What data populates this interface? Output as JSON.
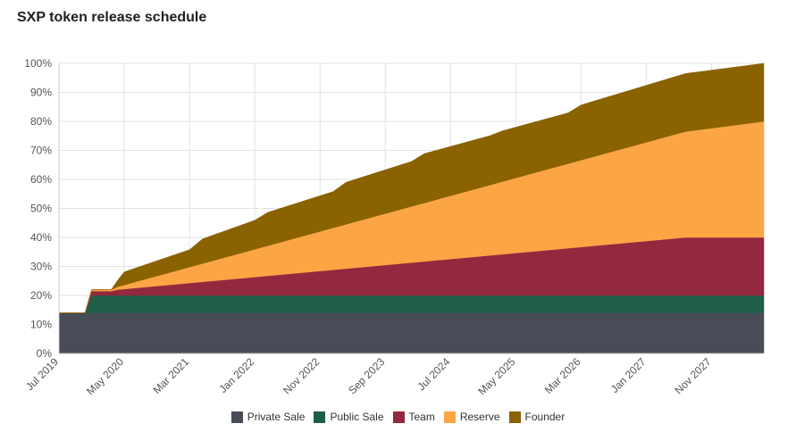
{
  "title": "SXP token release schedule",
  "chart_data": {
    "type": "area",
    "stacked": true,
    "title": "SXP token release schedule",
    "xlabel": "",
    "ylabel": "",
    "ylim": [
      0,
      100
    ],
    "x_range": [
      "Jul 2019",
      "Jul 2028"
    ],
    "yticks": [
      0,
      10,
      20,
      30,
      40,
      50,
      60,
      70,
      80,
      90,
      100
    ],
    "ytick_labels": [
      "0%",
      "10%",
      "20%",
      "30%",
      "40%",
      "50%",
      "60%",
      "70%",
      "80%",
      "90%",
      "100%"
    ],
    "xtick_labels": [
      "Jul 2019",
      "May 2020",
      "Mar 2021",
      "Jan 2022",
      "Nov 2022",
      "Sep 2023",
      "Jul 2024",
      "May 2025",
      "Mar 2026",
      "Jan 2027",
      "Nov 2027"
    ],
    "xtick_month_index": [
      0,
      10,
      20,
      30,
      40,
      50,
      60,
      70,
      80,
      90,
      100
    ],
    "total_months": 108,
    "grid": true,
    "legend_position": "bottom",
    "series": [
      {
        "name": "Private Sale",
        "color": "#474c56",
        "points": [
          [
            0,
            14
          ],
          [
            108,
            14
          ]
        ]
      },
      {
        "name": "Public Sale",
        "color": "#1f5f4a",
        "points": [
          [
            0,
            0
          ],
          [
            4,
            0
          ],
          [
            5,
            6
          ],
          [
            108,
            6
          ]
        ]
      },
      {
        "name": "Team",
        "color": "#93283f",
        "points": [
          [
            0,
            0
          ],
          [
            4,
            0
          ],
          [
            5,
            1.5
          ],
          [
            8,
            1.5
          ],
          [
            9,
            2
          ],
          [
            96,
            20
          ],
          [
            108,
            20
          ]
        ]
      },
      {
        "name": "Reserve",
        "color": "#fba544",
        "points": [
          [
            0,
            0
          ],
          [
            4,
            0
          ],
          [
            5,
            0.5
          ],
          [
            8,
            0.5
          ],
          [
            9,
            1
          ],
          [
            96,
            36.5
          ],
          [
            108,
            40
          ]
        ]
      },
      {
        "name": "Founder",
        "color": "#8a6200",
        "points": [
          [
            0,
            0
          ],
          [
            8,
            0
          ],
          [
            10,
            4.5
          ],
          [
            20,
            6
          ],
          [
            22,
            8.5
          ],
          [
            30,
            10
          ],
          [
            32,
            11.5
          ],
          [
            42,
            12.5
          ],
          [
            44,
            14.5
          ],
          [
            54,
            15.5
          ],
          [
            56,
            17
          ],
          [
            66,
            17
          ],
          [
            68,
            17.5
          ],
          [
            78,
            17.5
          ],
          [
            80,
            19
          ],
          [
            96,
            20
          ],
          [
            108,
            20
          ]
        ]
      }
    ]
  }
}
